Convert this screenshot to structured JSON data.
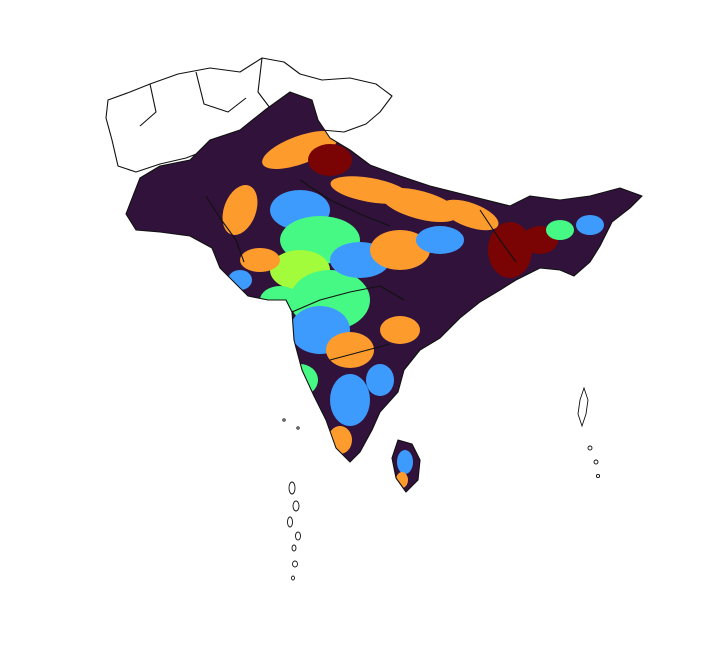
{
  "map": {
    "type": "categorical-raster-map",
    "region": "South Asia",
    "legend": null,
    "title": "",
    "palette": {
      "class_1": "#30123b",
      "class_2": "#3e9bfe",
      "class_3": "#46f884",
      "class_4": "#a2fc3c",
      "class_5": "#fe9b2d",
      "class_6": "#7a0403",
      "blank": "#ffffff",
      "border": "#111111"
    }
  }
}
